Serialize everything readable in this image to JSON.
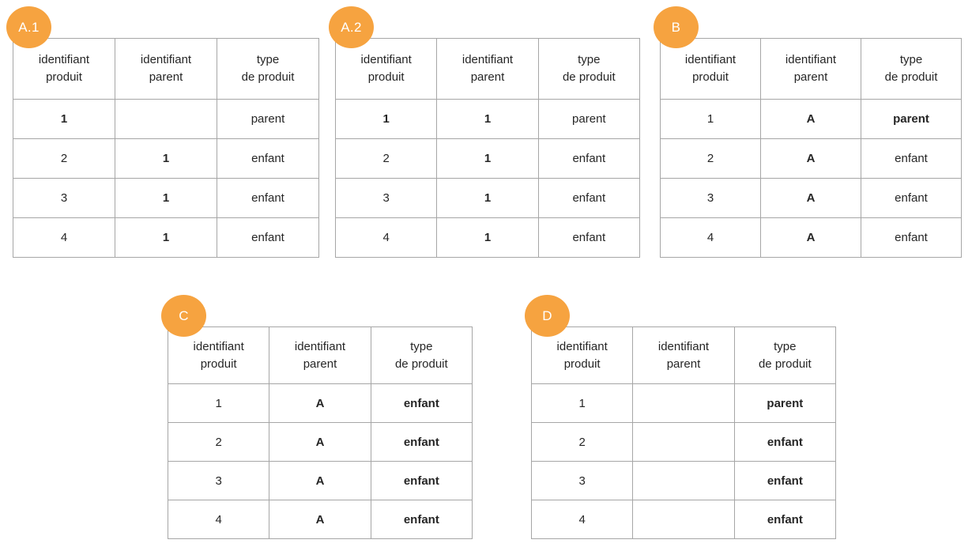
{
  "colors": {
    "badge": "#f6a340",
    "border": "#a6a6a6",
    "text": "#262626",
    "badge-text": "#ffffff"
  },
  "headers": [
    "identifiant\nproduit",
    "identifiant\nparent",
    "type\nde produit"
  ],
  "tables": [
    {
      "badge": "A.1",
      "rows": [
        [
          {
            "text": "1",
            "bold": true
          },
          {
            "text": "",
            "bold": false
          },
          {
            "text": "parent",
            "bold": false
          }
        ],
        [
          {
            "text": "2",
            "bold": false
          },
          {
            "text": "1",
            "bold": true
          },
          {
            "text": "enfant",
            "bold": false
          }
        ],
        [
          {
            "text": "3",
            "bold": false
          },
          {
            "text": "1",
            "bold": true
          },
          {
            "text": "enfant",
            "bold": false
          }
        ],
        [
          {
            "text": "4",
            "bold": false
          },
          {
            "text": "1",
            "bold": true
          },
          {
            "text": "enfant",
            "bold": false
          }
        ]
      ]
    },
    {
      "badge": "A.2",
      "rows": [
        [
          {
            "text": "1",
            "bold": true
          },
          {
            "text": "1",
            "bold": true
          },
          {
            "text": "parent",
            "bold": false
          }
        ],
        [
          {
            "text": "2",
            "bold": false
          },
          {
            "text": "1",
            "bold": true
          },
          {
            "text": "enfant",
            "bold": false
          }
        ],
        [
          {
            "text": "3",
            "bold": false
          },
          {
            "text": "1",
            "bold": true
          },
          {
            "text": "enfant",
            "bold": false
          }
        ],
        [
          {
            "text": "4",
            "bold": false
          },
          {
            "text": "1",
            "bold": true
          },
          {
            "text": "enfant",
            "bold": false
          }
        ]
      ]
    },
    {
      "badge": "B",
      "rows": [
        [
          {
            "text": "1",
            "bold": false
          },
          {
            "text": "A",
            "bold": true
          },
          {
            "text": "parent",
            "bold": true
          }
        ],
        [
          {
            "text": "2",
            "bold": false
          },
          {
            "text": "A",
            "bold": true
          },
          {
            "text": "enfant",
            "bold": false
          }
        ],
        [
          {
            "text": "3",
            "bold": false
          },
          {
            "text": "A",
            "bold": true
          },
          {
            "text": "enfant",
            "bold": false
          }
        ],
        [
          {
            "text": "4",
            "bold": false
          },
          {
            "text": "A",
            "bold": true
          },
          {
            "text": "enfant",
            "bold": false
          }
        ]
      ]
    },
    {
      "badge": "C",
      "rows": [
        [
          {
            "text": "1",
            "bold": false
          },
          {
            "text": "A",
            "bold": true
          },
          {
            "text": "enfant",
            "bold": true
          }
        ],
        [
          {
            "text": "2",
            "bold": false
          },
          {
            "text": "A",
            "bold": true
          },
          {
            "text": "enfant",
            "bold": true
          }
        ],
        [
          {
            "text": "3",
            "bold": false
          },
          {
            "text": "A",
            "bold": true
          },
          {
            "text": "enfant",
            "bold": true
          }
        ],
        [
          {
            "text": "4",
            "bold": false
          },
          {
            "text": "A",
            "bold": true
          },
          {
            "text": "enfant",
            "bold": true
          }
        ]
      ]
    },
    {
      "badge": "D",
      "rows": [
        [
          {
            "text": "1",
            "bold": false
          },
          {
            "text": "",
            "bold": false
          },
          {
            "text": "parent",
            "bold": true
          }
        ],
        [
          {
            "text": "2",
            "bold": false
          },
          {
            "text": "",
            "bold": false
          },
          {
            "text": "enfant",
            "bold": true
          }
        ],
        [
          {
            "text": "3",
            "bold": false
          },
          {
            "text": "",
            "bold": false
          },
          {
            "text": "enfant",
            "bold": true
          }
        ],
        [
          {
            "text": "4",
            "bold": false
          },
          {
            "text": "",
            "bold": false
          },
          {
            "text": "enfant",
            "bold": true
          }
        ]
      ]
    }
  ]
}
